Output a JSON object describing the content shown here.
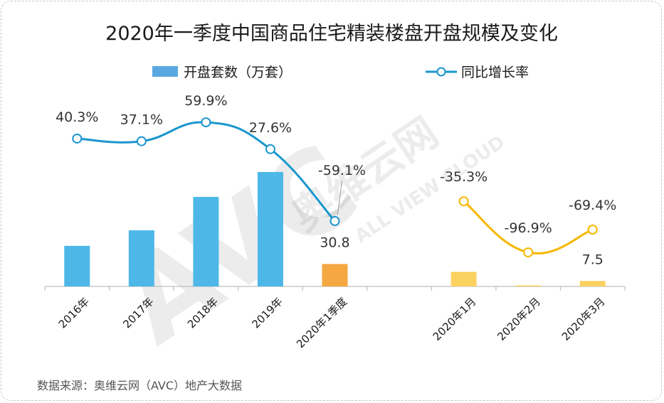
{
  "chart_data": {
    "type": "bar+line",
    "title": "2020年一季度中国商品住宅精装楼盘开盘规模及变化",
    "legend": {
      "bar_label": "开盘套数（万套）",
      "line_label": "同比增长率",
      "position": "top-center"
    },
    "categories": [
      "2016年",
      "2017年",
      "2018年",
      "2019年",
      "2020年1季度",
      "",
      "2020年1月",
      "2020年2月",
      "2020年3月"
    ],
    "bars": {
      "name": "开盘套数（万套）",
      "values": [
        55.7,
        77.0,
        122.8,
        157.0,
        30.8,
        null,
        20.0,
        0.6,
        7.5
      ],
      "labels": [
        "",
        "",
        "",
        "",
        "30.8",
        "",
        "",
        "",
        "7.5"
      ],
      "colors": [
        "#4db8e8",
        "#4db8e8",
        "#4db8e8",
        "#4db8e8",
        "#f5a742",
        null,
        "#fbd160",
        "#fbd160",
        "#fbd160"
      ]
    },
    "growth_annual": {
      "name": "同比增长率",
      "indices": [
        0,
        1,
        2,
        3,
        4
      ],
      "values": [
        40.3,
        37.1,
        59.9,
        27.6,
        -59.1
      ],
      "labels": [
        "40.3%",
        "37.1%",
        "59.9%",
        "27.6%",
        "-59.1%"
      ],
      "color": "#1a96cf"
    },
    "growth_monthly": {
      "name": "同比增长率",
      "indices": [
        6,
        7,
        8
      ],
      "values": [
        -35.3,
        -96.9,
        -69.4
      ],
      "labels": [
        "-35.3%",
        "-96.9%",
        "-69.4%"
      ],
      "color": "#f5b800"
    },
    "grid": false
  },
  "watermark": {
    "main": "AVC",
    "cn": "奥维云网",
    "en": "ALL VIEW CLOUD"
  },
  "source": "数据来源：奥维云网（AVC）地产大数据"
}
